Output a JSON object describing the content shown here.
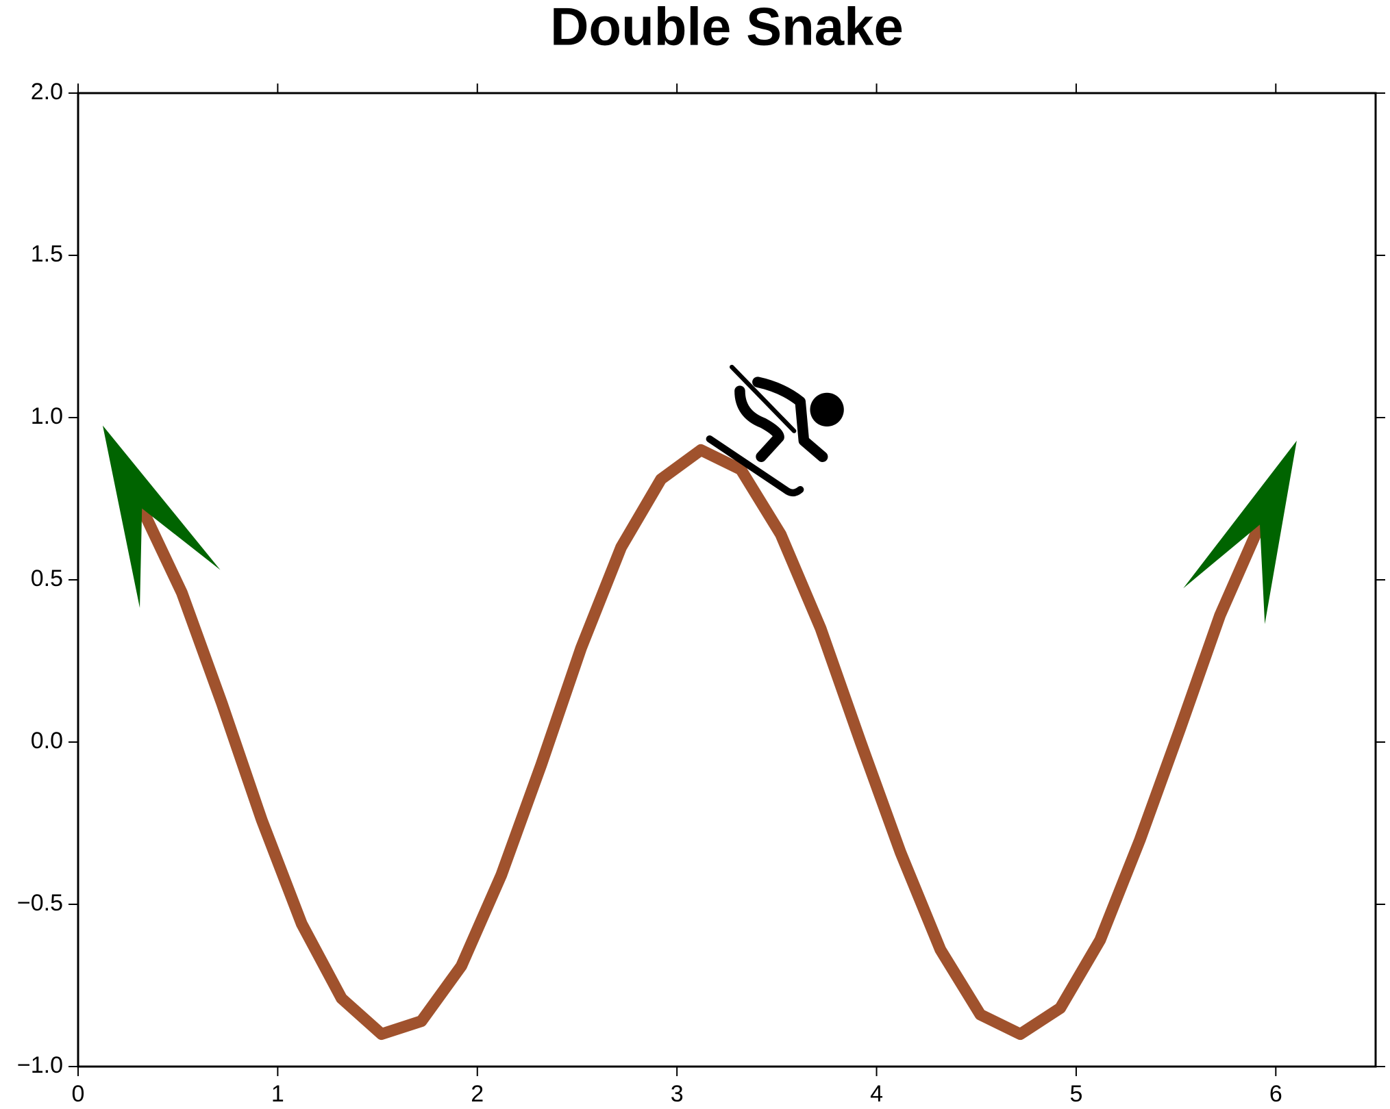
{
  "chart_data": {
    "type": "line",
    "title": "Double Snake",
    "x": [
      0.32,
      0.52,
      0.72,
      0.92,
      1.12,
      1.32,
      1.52,
      1.72,
      1.92,
      2.12,
      2.32,
      2.52,
      2.72,
      2.92,
      3.12,
      3.32,
      3.52,
      3.72,
      3.92,
      4.12,
      4.32,
      4.52,
      4.72,
      4.92,
      5.12,
      5.32,
      5.52,
      5.72,
      5.92
    ],
    "values": [
      0.72,
      0.46,
      0.12,
      -0.24,
      -0.56,
      -0.79,
      -0.9,
      -0.86,
      -0.69,
      -0.41,
      -0.07,
      0.29,
      0.6,
      0.81,
      0.9,
      0.84,
      0.64,
      0.35,
      0.0,
      -0.34,
      -0.64,
      -0.84,
      -0.9,
      -0.82,
      -0.61,
      -0.3,
      0.04,
      0.39,
      0.67
    ],
    "color": "#a0522d",
    "xlim": [
      0,
      6.5
    ],
    "xticks": [
      0,
      1,
      2,
      3,
      4,
      5,
      6
    ],
    "ylim": [
      -1,
      2
    ],
    "yticks": [
      {
        "value": -1,
        "label": "−1.0"
      },
      {
        "value": -0.5,
        "label": "−0.5"
      },
      {
        "value": 0,
        "label": "0.0"
      },
      0.5,
      {
        "value": 1,
        "label": "1.0"
      },
      1.5,
      {
        "value": 2,
        "label": "2.0"
      }
    ]
  }
}
